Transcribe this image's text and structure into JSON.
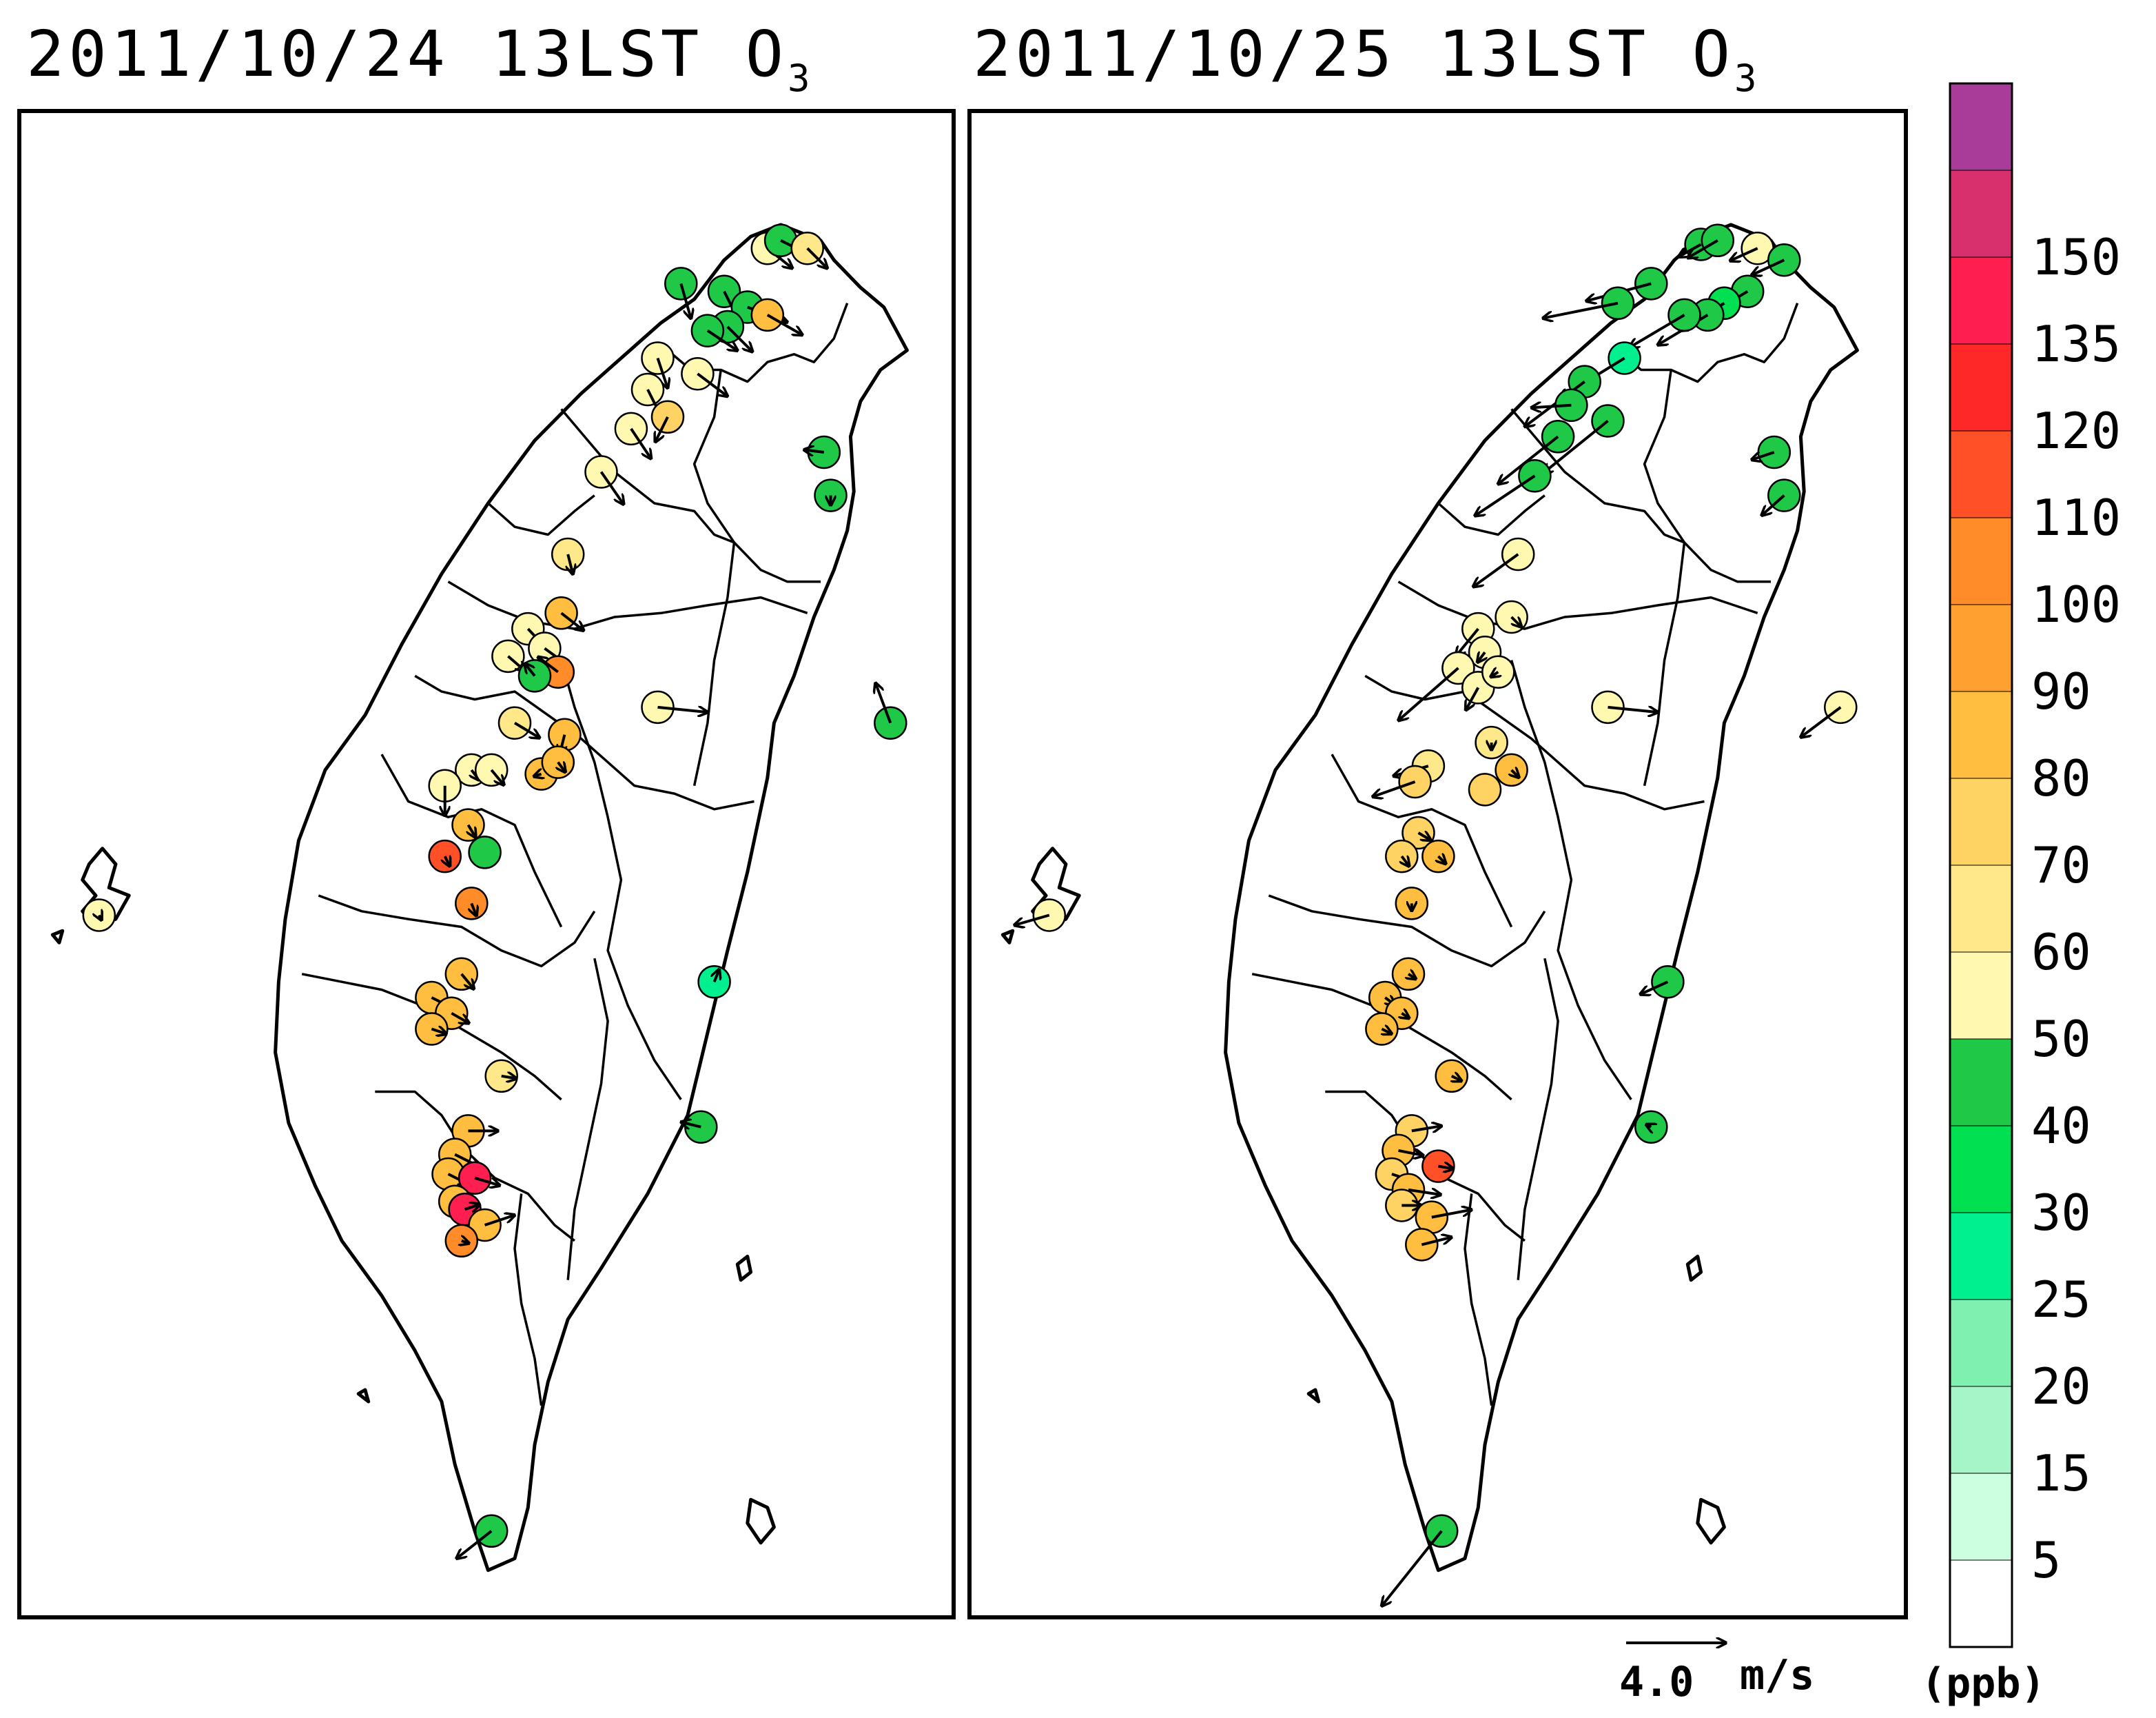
{
  "panels": [
    {
      "title": "2011/10/24 13LST O",
      "species_subscript": "3",
      "stations": [
        {
          "lon": 121.32,
          "lat": 25.18,
          "o3": 40,
          "u": 0.4,
          "v": -1.4
        },
        {
          "lon": 121.45,
          "lat": 25.16,
          "o3": 40,
          "u": 0.6,
          "v": -1.2
        },
        {
          "lon": 121.58,
          "lat": 25.27,
          "o3": 55,
          "u": 1.0,
          "v": -0.8
        },
        {
          "lon": 121.62,
          "lat": 25.29,
          "o3": 40,
          "u": 1.2,
          "v": -0.6
        },
        {
          "lon": 121.7,
          "lat": 25.27,
          "o3": 65,
          "u": 0.8,
          "v": -0.8
        },
        {
          "lon": 121.52,
          "lat": 25.12,
          "o3": 40,
          "u": 1.6,
          "v": -0.6
        },
        {
          "lon": 121.58,
          "lat": 25.1,
          "o3": 85,
          "u": 1.4,
          "v": -0.8
        },
        {
          "lon": 121.46,
          "lat": 25.07,
          "o3": 40,
          "u": 1.0,
          "v": -1.0
        },
        {
          "lon": 121.4,
          "lat": 25.06,
          "o3": 40,
          "u": 1.2,
          "v": -0.8
        },
        {
          "lon": 121.25,
          "lat": 24.99,
          "o3": 55,
          "u": 0.4,
          "v": -1.2
        },
        {
          "lon": 121.37,
          "lat": 24.95,
          "o3": 55,
          "u": 1.2,
          "v": -0.9
        },
        {
          "lon": 121.22,
          "lat": 24.91,
          "o3": 55,
          "u": 0.6,
          "v": -1.2
        },
        {
          "lon": 121.28,
          "lat": 24.84,
          "o3": 75,
          "u": -0.5,
          "v": -1.0
        },
        {
          "lon": 121.17,
          "lat": 24.81,
          "o3": 55,
          "u": 0.8,
          "v": -1.2
        },
        {
          "lon": 121.08,
          "lat": 24.7,
          "o3": 55,
          "u": 0.9,
          "v": -1.3
        },
        {
          "lon": 121.75,
          "lat": 24.75,
          "o3": 40,
          "u": -0.8,
          "v": 0.1
        },
        {
          "lon": 121.77,
          "lat": 24.64,
          "o3": 40,
          "u": 0.0,
          "v": -0.4
        },
        {
          "lon": 120.98,
          "lat": 24.49,
          "o3": 65,
          "u": 0.2,
          "v": -0.8
        },
        {
          "lon": 120.96,
          "lat": 24.34,
          "o3": 80,
          "u": 0.9,
          "v": -0.7
        },
        {
          "lon": 120.86,
          "lat": 24.3,
          "o3": 55,
          "u": 1.3,
          "v": -1.4
        },
        {
          "lon": 120.91,
          "lat": 24.25,
          "o3": 55,
          "u": 1.1,
          "v": -0.8
        },
        {
          "lon": 120.8,
          "lat": 24.23,
          "o3": 55,
          "u": 0.7,
          "v": -0.6
        },
        {
          "lon": 120.95,
          "lat": 24.19,
          "o3": 105,
          "u": -0.8,
          "v": 0.6
        },
        {
          "lon": 120.88,
          "lat": 24.18,
          "o3": 40,
          "u": -0.4,
          "v": 0.5
        },
        {
          "lon": 121.25,
          "lat": 24.1,
          "o3": 55,
          "u": 2.0,
          "v": -0.2
        },
        {
          "lon": 121.95,
          "lat": 24.06,
          "o3": 40,
          "u": -0.6,
          "v": 1.6
        },
        {
          "lon": 120.82,
          "lat": 24.06,
          "o3": 65,
          "u": 1.0,
          "v": -0.6
        },
        {
          "lon": 120.97,
          "lat": 24.03,
          "o3": 85,
          "u": -0.2,
          "v": -0.8
        },
        {
          "lon": 120.69,
          "lat": 23.94,
          "o3": 55,
          "u": 0.3,
          "v": -0.4
        },
        {
          "lon": 120.75,
          "lat": 23.94,
          "o3": 55,
          "u": 0.5,
          "v": -0.6
        },
        {
          "lon": 120.61,
          "lat": 23.9,
          "o3": 55,
          "u": 0.0,
          "v": -1.2
        },
        {
          "lon": 120.9,
          "lat": 23.93,
          "o3": 85,
          "u": -0.3,
          "v": -0.1
        },
        {
          "lon": 120.95,
          "lat": 23.96,
          "o3": 85,
          "u": 0.3,
          "v": -0.4
        },
        {
          "lon": 120.68,
          "lat": 23.8,
          "o3": 85,
          "u": 0.3,
          "v": -0.5
        },
        {
          "lon": 120.61,
          "lat": 23.72,
          "o3": 115,
          "u": 0.2,
          "v": -0.4
        },
        {
          "lon": 120.73,
          "lat": 23.73,
          "o3": 45,
          "u": 0.0,
          "v": 0.0
        },
        {
          "lon": 120.69,
          "lat": 23.6,
          "o3": 105,
          "u": 0.2,
          "v": -0.5
        },
        {
          "lon": 119.57,
          "lat": 23.57,
          "o3": 55,
          "u": 0.1,
          "v": -0.2
        },
        {
          "lon": 121.42,
          "lat": 23.4,
          "o3": 28,
          "u": 0.2,
          "v": 0.5
        },
        {
          "lon": 120.66,
          "lat": 23.42,
          "o3": 85,
          "u": 0.5,
          "v": -0.6
        },
        {
          "lon": 120.57,
          "lat": 23.36,
          "o3": 85,
          "u": 1.2,
          "v": -0.6
        },
        {
          "lon": 120.63,
          "lat": 23.32,
          "o3": 85,
          "u": 0.7,
          "v": -0.4
        },
        {
          "lon": 120.57,
          "lat": 23.28,
          "o3": 85,
          "u": 0.6,
          "v": -0.2
        },
        {
          "lon": 120.78,
          "lat": 23.16,
          "o3": 65,
          "u": 0.6,
          "v": -0.1
        },
        {
          "lon": 121.38,
          "lat": 23.03,
          "o3": 40,
          "u": -0.8,
          "v": 0.2
        },
        {
          "lon": 120.68,
          "lat": 23.02,
          "o3": 85,
          "u": 1.2,
          "v": 0.0
        },
        {
          "lon": 120.64,
          "lat": 22.96,
          "o3": 85,
          "u": 1.0,
          "v": -0.5
        },
        {
          "lon": 120.62,
          "lat": 22.91,
          "o3": 85,
          "u": 0.8,
          "v": -0.4
        },
        {
          "lon": 120.7,
          "lat": 22.9,
          "o3": 140,
          "u": 1.0,
          "v": -0.3
        },
        {
          "lon": 120.64,
          "lat": 22.84,
          "o3": 85,
          "u": 0.4,
          "v": -0.4
        },
        {
          "lon": 120.67,
          "lat": 22.82,
          "o3": 145,
          "u": 0.6,
          "v": 0.2
        },
        {
          "lon": 120.73,
          "lat": 22.78,
          "o3": 85,
          "u": 1.2,
          "v": 0.4
        },
        {
          "lon": 120.66,
          "lat": 22.74,
          "o3": 105,
          "u": 0.3,
          "v": -0.1
        },
        {
          "lon": 120.75,
          "lat": 22.0,
          "o3": 40,
          "u": -1.4,
          "v": -1.1
        }
      ]
    },
    {
      "title": "2011/10/25 13LST O",
      "species_subscript": "3",
      "stations": [
        {
          "lon": 121.53,
          "lat": 25.28,
          "o3": 45,
          "u": -0.9,
          "v": -0.5
        },
        {
          "lon": 121.58,
          "lat": 25.29,
          "o3": 45,
          "u": -1.2,
          "v": -0.7
        },
        {
          "lon": 121.7,
          "lat": 25.27,
          "o3": 55,
          "u": -1.1,
          "v": -0.5
        },
        {
          "lon": 121.78,
          "lat": 25.24,
          "o3": 40,
          "u": -1.3,
          "v": -0.6
        },
        {
          "lon": 121.67,
          "lat": 25.16,
          "o3": 40,
          "u": -1.5,
          "v": -0.9
        },
        {
          "lon": 121.6,
          "lat": 25.13,
          "o3": 30,
          "u": -1.8,
          "v": -1.1
        },
        {
          "lon": 121.55,
          "lat": 25.1,
          "o3": 40,
          "u": -2.0,
          "v": -1.2
        },
        {
          "lon": 121.48,
          "lat": 25.1,
          "o3": 40,
          "u": -2.2,
          "v": -1.3
        },
        {
          "lon": 121.38,
          "lat": 25.18,
          "o3": 40,
          "u": -2.6,
          "v": -0.7
        },
        {
          "lon": 121.28,
          "lat": 25.13,
          "o3": 40,
          "u": -3.0,
          "v": -0.6
        },
        {
          "lon": 121.3,
          "lat": 24.99,
          "o3": 28,
          "u": -2.6,
          "v": -1.6
        },
        {
          "lon": 121.18,
          "lat": 24.93,
          "o3": 40,
          "u": -2.4,
          "v": -1.8
        },
        {
          "lon": 121.14,
          "lat": 24.87,
          "o3": 40,
          "u": -1.6,
          "v": -0.1
        },
        {
          "lon": 121.25,
          "lat": 24.83,
          "o3": 40,
          "u": -2.6,
          "v": -2.1
        },
        {
          "lon": 121.1,
          "lat": 24.79,
          "o3": 40,
          "u": -2.4,
          "v": -1.9
        },
        {
          "lon": 121.03,
          "lat": 24.69,
          "o3": 40,
          "u": -2.4,
          "v": -1.6
        },
        {
          "lon": 121.75,
          "lat": 24.75,
          "o3": 40,
          "u": -0.9,
          "v": -0.3
        },
        {
          "lon": 121.78,
          "lat": 24.64,
          "o3": 40,
          "u": -0.9,
          "v": -0.8
        },
        {
          "lon": 120.98,
          "lat": 24.49,
          "o3": 55,
          "u": -1.8,
          "v": -1.3
        },
        {
          "lon": 120.96,
          "lat": 24.33,
          "o3": 55,
          "u": 0.4,
          "v": -0.4
        },
        {
          "lon": 120.86,
          "lat": 24.3,
          "o3": 55,
          "u": -0.9,
          "v": -1.1
        },
        {
          "lon": 120.88,
          "lat": 24.24,
          "o3": 55,
          "u": -0.3,
          "v": -0.4
        },
        {
          "lon": 120.8,
          "lat": 24.2,
          "o3": 55,
          "u": -2.4,
          "v": -2.1
        },
        {
          "lon": 120.86,
          "lat": 24.15,
          "o3": 55,
          "u": -0.5,
          "v": -0.9
        },
        {
          "lon": 120.92,
          "lat": 24.19,
          "o3": 55,
          "u": -0.3,
          "v": -0.2
        },
        {
          "lon": 121.25,
          "lat": 24.1,
          "o3": 55,
          "u": 2.0,
          "v": -0.2
        },
        {
          "lon": 121.95,
          "lat": 24.1,
          "o3": 55,
          "u": -1.6,
          "v": -1.2
        },
        {
          "lon": 120.9,
          "lat": 24.01,
          "o3": 65,
          "u": 0.0,
          "v": -0.3
        },
        {
          "lon": 120.71,
          "lat": 23.95,
          "o3": 65,
          "u": -1.4,
          "v": -0.4
        },
        {
          "lon": 120.67,
          "lat": 23.91,
          "o3": 75,
          "u": -1.7,
          "v": -0.6
        },
        {
          "lon": 120.88,
          "lat": 23.89,
          "o3": 75,
          "u": 0.0,
          "v": 0.0
        },
        {
          "lon": 120.96,
          "lat": 23.94,
          "o3": 85,
          "u": 0.3,
          "v": -0.3
        },
        {
          "lon": 120.68,
          "lat": 23.78,
          "o3": 75,
          "u": 0.5,
          "v": -0.3
        },
        {
          "lon": 120.63,
          "lat": 23.72,
          "o3": 75,
          "u": 0.3,
          "v": -0.4
        },
        {
          "lon": 120.74,
          "lat": 23.72,
          "o3": 85,
          "u": 0.3,
          "v": -0.3
        },
        {
          "lon": 120.66,
          "lat": 23.6,
          "o3": 85,
          "u": 0.0,
          "v": -0.3
        },
        {
          "lon": 119.57,
          "lat": 23.57,
          "o3": 55,
          "u": -1.4,
          "v": -0.4
        },
        {
          "lon": 121.43,
          "lat": 23.4,
          "o3": 40,
          "u": -1.1,
          "v": -0.5
        },
        {
          "lon": 120.65,
          "lat": 23.42,
          "o3": 85,
          "u": 0.3,
          "v": -0.2
        },
        {
          "lon": 120.58,
          "lat": 23.36,
          "o3": 85,
          "u": 0.4,
          "v": -0.3
        },
        {
          "lon": 120.63,
          "lat": 23.32,
          "o3": 85,
          "u": 0.3,
          "v": -0.2
        },
        {
          "lon": 120.57,
          "lat": 23.28,
          "o3": 85,
          "u": 0.4,
          "v": -0.2
        },
        {
          "lon": 120.78,
          "lat": 23.16,
          "o3": 85,
          "u": 0.4,
          "v": -0.2
        },
        {
          "lon": 121.38,
          "lat": 23.03,
          "o3": 40,
          "u": -0.2,
          "v": 0.1
        },
        {
          "lon": 120.66,
          "lat": 23.02,
          "o3": 75,
          "u": 1.2,
          "v": 0.2
        },
        {
          "lon": 120.62,
          "lat": 22.97,
          "o3": 85,
          "u": 1.0,
          "v": -0.2
        },
        {
          "lon": 120.74,
          "lat": 22.93,
          "o3": 110,
          "u": 0.6,
          "v": -0.1
        },
        {
          "lon": 120.6,
          "lat": 22.91,
          "o3": 75,
          "u": 0.9,
          "v": -0.3
        },
        {
          "lon": 120.65,
          "lat": 22.87,
          "o3": 85,
          "u": 1.3,
          "v": -0.2
        },
        {
          "lon": 120.63,
          "lat": 22.83,
          "o3": 75,
          "u": 0.8,
          "v": 0.0
        },
        {
          "lon": 120.72,
          "lat": 22.8,
          "o3": 85,
          "u": 1.6,
          "v": 0.3
        },
        {
          "lon": 120.69,
          "lat": 22.73,
          "o3": 85,
          "u": 1.2,
          "v": 0.3
        },
        {
          "lon": 120.75,
          "lat": 22.0,
          "o3": 40,
          "u": -2.4,
          "v": -3.0
        }
      ]
    }
  ],
  "colorbar": {
    "ticks": [
      "5",
      "15",
      "20",
      "25",
      "30",
      "40",
      "50",
      "60",
      "70",
      "80",
      "90",
      "100",
      "110",
      "120",
      "135",
      "150"
    ],
    "colors": [
      "#ffffff",
      "#ccffe0",
      "#a6f5c8",
      "#80f0b0",
      "#00f090",
      "#00e050",
      "#20c848",
      "#fff8b0",
      "#ffe88a",
      "#ffd264",
      "#ffbe40",
      "#ffa030",
      "#ff8c28",
      "#ff5028",
      "#ff2828",
      "#ff1e50",
      "#d8306c",
      "#a83c98"
    ],
    "unit": "(ppb)"
  },
  "wind_legend": {
    "magnitude": "4.0",
    "unit": "m/s",
    "speed": 4.0
  }
}
